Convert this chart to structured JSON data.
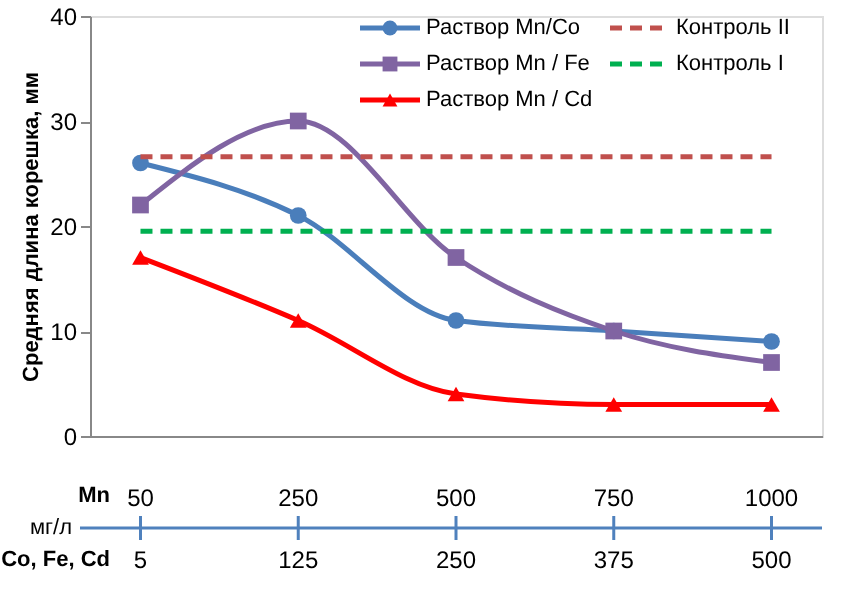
{
  "chart_data": {
    "type": "line",
    "ylabel": "Средняя длина корешка, мм",
    "categories": [
      "50",
      "250",
      "500",
      "750",
      "1000"
    ],
    "ylim": [
      0,
      40
    ],
    "yticks": [
      0,
      10,
      20,
      30,
      40
    ],
    "grid": false,
    "legend": "top right",
    "line_style": "solid",
    "series": [
      {
        "name": "Раствор Mn/Co",
        "color": "#4a7ebb",
        "marker": "circle",
        "values": [
          26,
          21,
          11,
          10,
          9
        ]
      },
      {
        "name": "Раствор Mn / Fe",
        "color": "#8064a2",
        "marker": "square",
        "values": [
          22,
          30,
          17,
          10,
          7
        ]
      },
      {
        "name": "Раствор Mn / Cd",
        "color": "#ff0000",
        "marker": "triangle",
        "values": [
          17,
          11,
          4,
          3,
          3
        ]
      }
    ],
    "ref_lines": [
      {
        "axis": "y",
        "value": 26.6,
        "label": "Контроль II",
        "color": "#c0504d",
        "line_style": "dashed"
      },
      {
        "axis": "y",
        "value": 19.5,
        "label": "Контроль I",
        "color": "#00b050",
        "line_style": "dashed"
      }
    ],
    "annotations": [
      "Mn",
      "мг/л",
      "Co, Fe, Cd",
      {
        "text": "5",
        "x": "50"
      },
      {
        "text": "125",
        "x": "250"
      },
      {
        "text": "250",
        "x": "500"
      },
      {
        "text": "375",
        "x": "750"
      },
      {
        "text": "500",
        "x": "1000"
      }
    ]
  }
}
